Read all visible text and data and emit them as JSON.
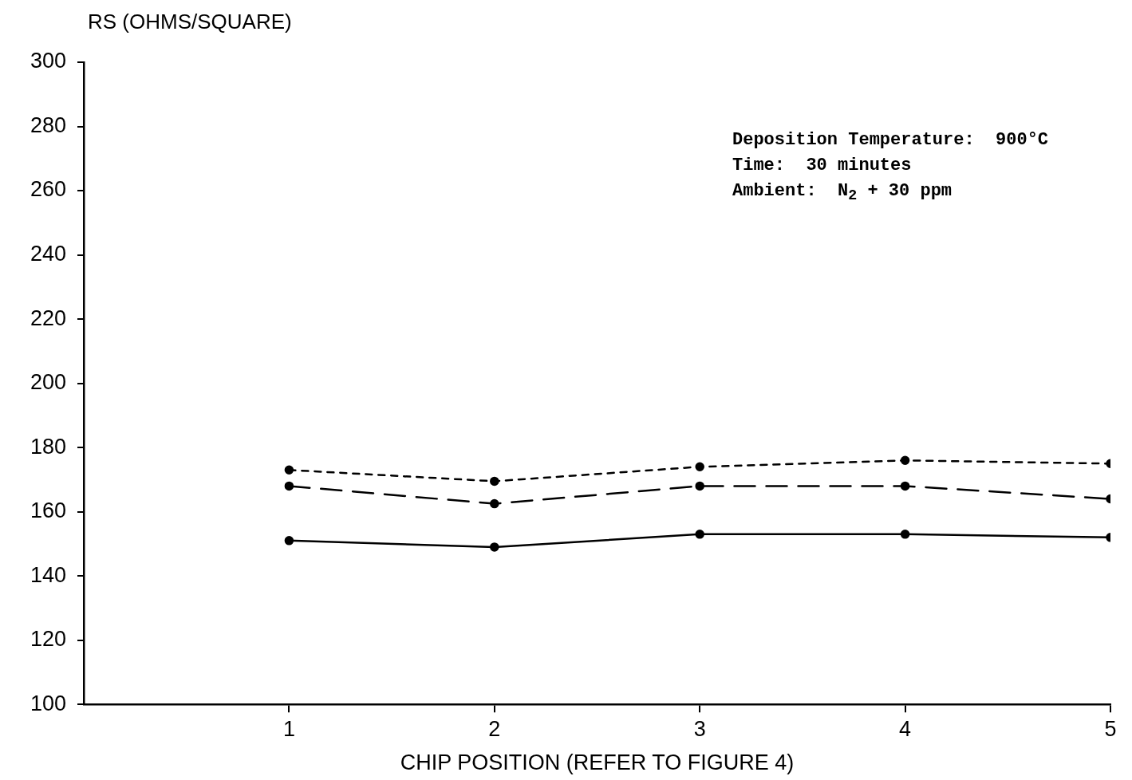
{
  "chart_data": {
    "type": "line",
    "ylabel": "RS (OHMS/SQUARE)",
    "xlabel": "CHIP POSITION (REFER TO FIGURE 4)",
    "x": [
      1,
      2,
      3,
      4,
      5
    ],
    "xlim": [
      0,
      5
    ],
    "xticks": [
      1,
      2,
      3,
      4,
      5
    ],
    "ylim": [
      100,
      300
    ],
    "yticks": [
      100,
      120,
      140,
      160,
      180,
      200,
      220,
      240,
      260,
      280,
      300
    ],
    "grid": false,
    "legend": false,
    "marker": "circle",
    "series": [
      {
        "color": "#000000",
        "line_style": "dotted",
        "values": [
          173,
          169.5,
          174,
          176,
          175
        ]
      },
      {
        "color": "#000000",
        "line_style": "dashed",
        "values": [
          168,
          162.5,
          168,
          168,
          164
        ]
      },
      {
        "color": "#000000",
        "line_style": "solid",
        "values": [
          151,
          149,
          153,
          153,
          152
        ]
      }
    ],
    "annotations": [
      "Deposition Temperature:  900°C",
      "Time:  30 minutes",
      "Ambient:  N$_{2}$ + 30 ppm"
    ]
  }
}
